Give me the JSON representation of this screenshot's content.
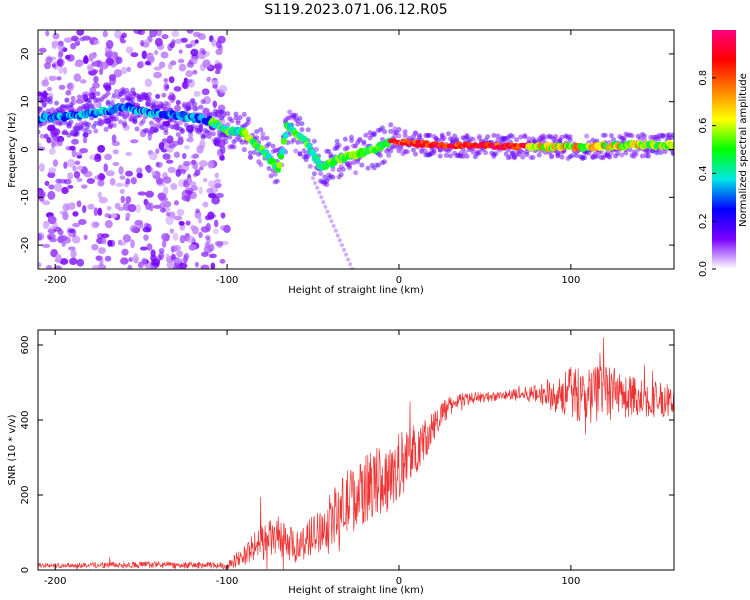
{
  "chart_data": [
    {
      "type": "heatmap",
      "title": "S119.2023.071.06.12.R05",
      "xlabel": "Height of straight line (km)",
      "ylabel": "Frequency (Hz)",
      "xlim": [
        -210,
        160
      ],
      "ylim": [
        -25,
        25
      ],
      "x_ticks": [
        -200,
        -100,
        0,
        100
      ],
      "y_ticks": [
        -20,
        -10,
        0,
        10,
        20
      ],
      "colorbar": {
        "label": "Normalized spectral amplitude",
        "range": [
          0,
          1
        ],
        "ticks": [
          0.0,
          0.2,
          0.4,
          0.6,
          0.8
        ],
        "colormap": [
          "#ffffff",
          "#7a00ff",
          "#0000ff",
          "#00e6e6",
          "#00ff00",
          "#ffff00",
          "#ff8000",
          "#ff0000",
          "#ff0080"
        ]
      },
      "ridge": {
        "name": "main spectral ridge",
        "points": [
          {
            "x": -210,
            "y": 6.5
          },
          {
            "x": -190,
            "y": 7
          },
          {
            "x": -170,
            "y": 8
          },
          {
            "x": -160,
            "y": 9
          },
          {
            "x": -150,
            "y": 8
          },
          {
            "x": -140,
            "y": 7.5
          },
          {
            "x": -125,
            "y": 7
          },
          {
            "x": -110,
            "y": 6
          },
          {
            "x": -100,
            "y": 4
          },
          {
            "x": -90,
            "y": 3.5
          },
          {
            "x": -80,
            "y": 0
          },
          {
            "x": -70,
            "y": -4
          },
          {
            "x": -65,
            "y": 5
          },
          {
            "x": -55,
            "y": 2
          },
          {
            "x": -45,
            "y": -4
          },
          {
            "x": -35,
            "y": -2
          },
          {
            "x": -25,
            "y": -1
          },
          {
            "x": -15,
            "y": 0
          },
          {
            "x": -5,
            "y": 1.5
          },
          {
            "x": 0,
            "y": 1.5
          },
          {
            "x": 20,
            "y": 1
          },
          {
            "x": 50,
            "y": 0.8
          },
          {
            "x": 80,
            "y": 0.5
          },
          {
            "x": 110,
            "y": 0.5
          },
          {
            "x": 140,
            "y": 1
          },
          {
            "x": 160,
            "y": 1
          }
        ]
      },
      "noise_region": {
        "x_from": -210,
        "x_to": -100
      }
    },
    {
      "type": "line",
      "title": "",
      "xlabel": "Height of straight line (km)",
      "ylabel": "SNR (10 * v/v)",
      "xlim": [
        -210,
        160
      ],
      "ylim": [
        0,
        640
      ],
      "x_ticks": [
        -200,
        -100,
        0,
        100
      ],
      "y_ticks": [
        0,
        200,
        400,
        600
      ],
      "series": [
        {
          "color": "#ee3333",
          "envelope": [
            {
              "x": -210,
              "base": 12,
              "amp": 10
            },
            {
              "x": -150,
              "base": 14,
              "amp": 15
            },
            {
              "x": -100,
              "base": 12,
              "amp": 15
            },
            {
              "x": -90,
              "base": 40,
              "amp": 50
            },
            {
              "x": -80,
              "base": 75,
              "amp": 80
            },
            {
              "x": -70,
              "base": 90,
              "amp": 90
            },
            {
              "x": -60,
              "base": 60,
              "amp": 70
            },
            {
              "x": -45,
              "base": 110,
              "amp": 100
            },
            {
              "x": -30,
              "base": 180,
              "amp": 150
            },
            {
              "x": -15,
              "base": 230,
              "amp": 150
            },
            {
              "x": -5,
              "base": 250,
              "amp": 160
            },
            {
              "x": 5,
              "base": 300,
              "amp": 140
            },
            {
              "x": 15,
              "base": 350,
              "amp": 90
            },
            {
              "x": 25,
              "base": 420,
              "amp": 60
            },
            {
              "x": 35,
              "base": 455,
              "amp": 30
            },
            {
              "x": 60,
              "base": 465,
              "amp": 20
            },
            {
              "x": 80,
              "base": 470,
              "amp": 40
            },
            {
              "x": 100,
              "base": 470,
              "amp": 120
            },
            {
              "x": 120,
              "base": 470,
              "amp": 130
            },
            {
              "x": 140,
              "base": 460,
              "amp": 90
            },
            {
              "x": 160,
              "base": 450,
              "amp": 70
            }
          ]
        }
      ]
    }
  ]
}
